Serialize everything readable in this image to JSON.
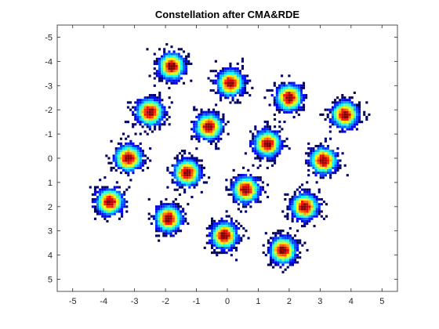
{
  "chart_data": {
    "type": "heatmap",
    "title": "Constellation after CMA&RDE",
    "xlabel": "",
    "ylabel": "",
    "xlim": [
      -5.5,
      5.5
    ],
    "ylim": [
      -5.5,
      5.5
    ],
    "y_axis_reversed": true,
    "grid": false,
    "legend": "none",
    "colormap": "jet",
    "x_ticks": [
      -5,
      -4,
      -3,
      -2,
      -1,
      0,
      1,
      2,
      3,
      4,
      5
    ],
    "y_ticks": [
      -5,
      -4,
      -3,
      -2,
      -1,
      0,
      1,
      2,
      3,
      4,
      5
    ],
    "x_tick_labels": [
      "-5",
      "-4",
      "-3",
      "-2",
      "-1",
      "0",
      "1",
      "2",
      "3",
      "4",
      "5"
    ],
    "y_tick_labels": [
      "-5",
      "-4",
      "-3",
      "-2",
      "-1",
      "0",
      "1",
      "2",
      "3",
      "4",
      "5"
    ],
    "clusters": [
      {
        "x": -1.8,
        "y": -3.8
      },
      {
        "x": 0.1,
        "y": -3.1
      },
      {
        "x": 2.0,
        "y": -2.5
      },
      {
        "x": 3.8,
        "y": -1.8
      },
      {
        "x": -2.5,
        "y": -1.9
      },
      {
        "x": -0.6,
        "y": -1.3
      },
      {
        "x": 1.3,
        "y": -0.6
      },
      {
        "x": 3.1,
        "y": 0.1
      },
      {
        "x": -3.2,
        "y": 0.0
      },
      {
        "x": -1.3,
        "y": 0.6
      },
      {
        "x": 0.6,
        "y": 1.3
      },
      {
        "x": 2.5,
        "y": 2.0
      },
      {
        "x": -3.8,
        "y": 1.8
      },
      {
        "x": -1.9,
        "y": 2.5
      },
      {
        "x": -0.1,
        "y": 3.2
      },
      {
        "x": 1.8,
        "y": 3.8
      }
    ],
    "cluster_spread": 0.28
  }
}
